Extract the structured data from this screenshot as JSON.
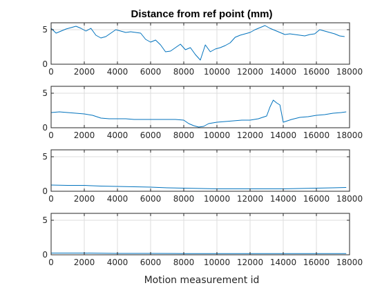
{
  "figure": {
    "title": "Distance from ref point (mm)",
    "xlabel": "Motion measurement id"
  },
  "colors": {
    "series": "#0072bd",
    "grid": "#dedede",
    "axis": "#262626"
  },
  "chart_data": [
    {
      "type": "line",
      "title": "Distance from ref point (mm)",
      "xlabel": "",
      "ylabel": "",
      "xlim": [
        0,
        18000
      ],
      "ylim": [
        0,
        6
      ],
      "xticks": [
        0,
        2000,
        4000,
        6000,
        8000,
        10000,
        12000,
        14000,
        16000,
        18000
      ],
      "yticks": [
        0,
        5
      ],
      "grid": true,
      "series": [
        {
          "x": [
            0,
            300,
            600,
            900,
            1200,
            1500,
            1800,
            2100,
            2400,
            2700,
            3000,
            3300,
            3600,
            3900,
            4200,
            4500,
            4800,
            5100,
            5400,
            5700,
            6000,
            6300,
            6600,
            6900,
            7200,
            7500,
            7800,
            8100,
            8400,
            8700,
            9000,
            9300,
            9600,
            9900,
            10200,
            10500,
            10800,
            11100,
            11400,
            11700,
            12000,
            12300,
            12600,
            12900,
            13200,
            13500,
            13800,
            14100,
            14400,
            14700,
            15000,
            15300,
            15600,
            15900,
            16200,
            16500,
            16800,
            17100,
            17400,
            17700
          ],
          "y": [
            5.2,
            4.5,
            4.8,
            5.1,
            5.3,
            5.5,
            5.2,
            4.8,
            5.2,
            4.2,
            3.8,
            4.0,
            4.5,
            5.0,
            4.8,
            4.6,
            4.7,
            4.6,
            4.5,
            3.6,
            3.2,
            3.5,
            2.8,
            1.8,
            1.9,
            2.4,
            2.9,
            2.1,
            2.4,
            1.4,
            0.6,
            2.8,
            1.8,
            2.2,
            2.4,
            2.7,
            3.1,
            3.9,
            4.2,
            4.4,
            4.6,
            5.0,
            5.3,
            5.6,
            5.2,
            4.9,
            4.6,
            4.3,
            4.4,
            4.3,
            4.2,
            4.1,
            4.3,
            4.4,
            5.0,
            4.8,
            4.6,
            4.4,
            4.1,
            4.0
          ]
        }
      ]
    },
    {
      "type": "line",
      "title": "",
      "xlabel": "",
      "ylabel": "",
      "xlim": [
        0,
        18000
      ],
      "ylim": [
        0,
        6
      ],
      "xticks": [
        0,
        2000,
        4000,
        6000,
        8000,
        10000,
        12000,
        14000,
        16000,
        18000
      ],
      "yticks": [
        0,
        5
      ],
      "grid": true,
      "series": [
        {
          "x": [
            0,
            500,
            1000,
            1500,
            2000,
            2500,
            3000,
            3500,
            4000,
            4500,
            5000,
            5500,
            6000,
            6500,
            7000,
            7500,
            8000,
            8300,
            8600,
            8900,
            9200,
            9500,
            10000,
            10500,
            11000,
            11500,
            12000,
            12500,
            13000,
            13200,
            13400,
            13600,
            13800,
            14000,
            14500,
            15000,
            15500,
            16000,
            16500,
            17000,
            17500,
            17800
          ],
          "y": [
            2.2,
            2.3,
            2.2,
            2.1,
            2.0,
            1.8,
            1.4,
            1.3,
            1.3,
            1.3,
            1.2,
            1.2,
            1.2,
            1.2,
            1.2,
            1.2,
            1.1,
            0.6,
            0.3,
            0.1,
            0.2,
            0.6,
            0.8,
            0.9,
            1.0,
            1.1,
            1.1,
            1.3,
            1.7,
            3.0,
            4.0,
            3.6,
            3.3,
            0.8,
            1.2,
            1.5,
            1.6,
            1.8,
            1.9,
            2.1,
            2.2,
            2.3
          ]
        }
      ]
    },
    {
      "type": "line",
      "title": "",
      "xlabel": "",
      "ylabel": "",
      "xlim": [
        0,
        18000
      ],
      "ylim": [
        0,
        6
      ],
      "xticks": [
        0,
        2000,
        4000,
        6000,
        8000,
        10000,
        12000,
        14000,
        16000,
        18000
      ],
      "yticks": [
        0,
        5
      ],
      "grid": true,
      "series": [
        {
          "x": [
            0,
            1000,
            2000,
            3000,
            4000,
            5000,
            6000,
            7000,
            8000,
            9000,
            10000,
            11000,
            12000,
            13000,
            14000,
            15000,
            16000,
            17000,
            17800
          ],
          "y": [
            0.9,
            0.85,
            0.85,
            0.75,
            0.7,
            0.65,
            0.6,
            0.5,
            0.45,
            0.4,
            0.35,
            0.35,
            0.35,
            0.35,
            0.35,
            0.4,
            0.45,
            0.5,
            0.55
          ]
        }
      ]
    },
    {
      "type": "line",
      "title": "",
      "xlabel": "Motion measurement id",
      "ylabel": "",
      "xlim": [
        0,
        18000
      ],
      "ylim": [
        0,
        6
      ],
      "xticks": [
        0,
        2000,
        4000,
        6000,
        8000,
        10000,
        12000,
        14000,
        16000,
        18000
      ],
      "yticks": [
        0,
        5
      ],
      "grid": true,
      "series": [
        {
          "x": [
            0,
            2000,
            4000,
            6000,
            8000,
            10000,
            12000,
            14000,
            16000,
            17800
          ],
          "y": [
            0.25,
            0.25,
            0.2,
            0.2,
            0.18,
            0.18,
            0.18,
            0.18,
            0.18,
            0.18
          ]
        }
      ]
    }
  ]
}
